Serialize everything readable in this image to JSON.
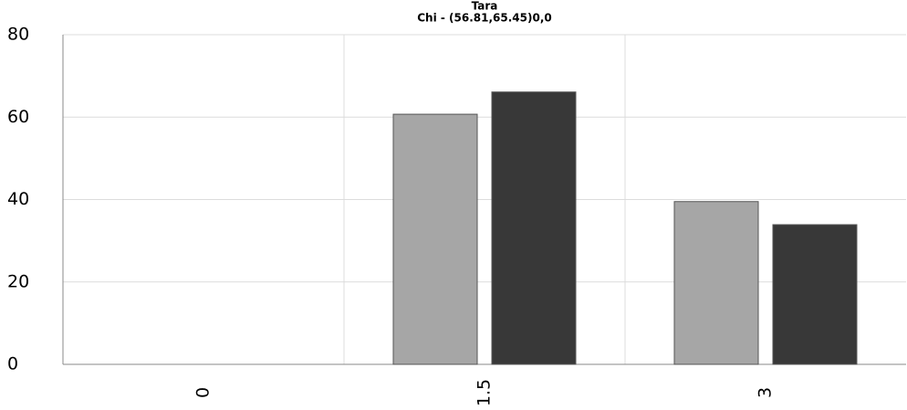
{
  "chart_data": {
    "type": "bar",
    "title": "Tara",
    "subtitle": "Chi - (56.81,65.45)0,0",
    "categories": [
      "0",
      "1.5",
      "3"
    ],
    "series": [
      {
        "color": "#a6a6a6",
        "values": [
          0,
          60.7,
          39.5
        ]
      },
      {
        "color": "#383838",
        "values": [
          0,
          66.1,
          33.9
        ]
      }
    ],
    "ylim": [
      0,
      80
    ],
    "yticks": [
      0,
      20,
      40,
      60,
      80
    ],
    "grid": true
  }
}
